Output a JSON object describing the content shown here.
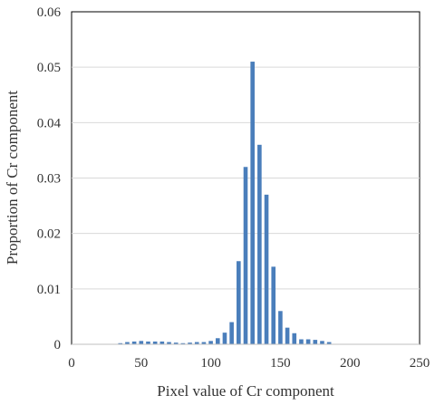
{
  "chart_data": {
    "type": "bar",
    "title": "",
    "xlabel": "Pixel value of Cr component",
    "ylabel": "Proportion of Cr component",
    "xlim": [
      0,
      250
    ],
    "ylim": [
      0,
      0.06
    ],
    "x_ticks": [
      "0",
      "50",
      "100",
      "150",
      "200",
      "250"
    ],
    "y_ticks": [
      "0",
      "0.01",
      "0.02",
      "0.03",
      "0.04",
      "0.05",
      "0.06"
    ],
    "bin_width": 5,
    "grid": true,
    "legend": "none",
    "bar_color": "#4a7ebb",
    "x": [
      35,
      40,
      45,
      50,
      55,
      60,
      65,
      70,
      75,
      80,
      85,
      90,
      95,
      100,
      105,
      110,
      115,
      120,
      125,
      130,
      135,
      140,
      145,
      150,
      155,
      160,
      165,
      170,
      175,
      180,
      185
    ],
    "values": [
      0.0002,
      0.0004,
      0.0005,
      0.0006,
      0.0005,
      0.0005,
      0.0005,
      0.0004,
      0.0003,
      0.0002,
      0.0003,
      0.0004,
      0.0004,
      0.0006,
      0.0011,
      0.0021,
      0.004,
      0.015,
      0.032,
      0.051,
      0.036,
      0.027,
      0.014,
      0.006,
      0.003,
      0.002,
      0.0009,
      0.0009,
      0.0008,
      0.0006,
      0.0004
    ]
  }
}
